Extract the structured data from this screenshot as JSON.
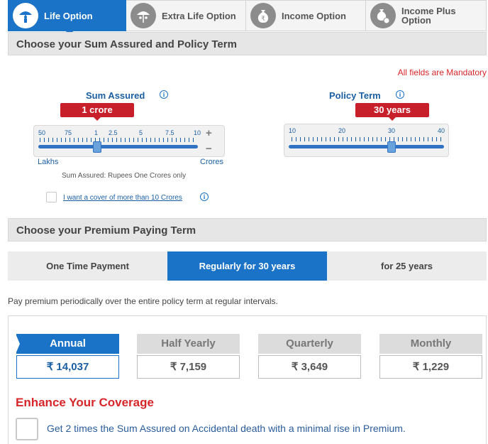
{
  "tabs": [
    {
      "label": "Life Option",
      "icon": "umbrella-person-icon",
      "active": true
    },
    {
      "label": "Extra Life Option",
      "icon": "umbrella-family-icon",
      "active": false
    },
    {
      "label": "Income Option",
      "icon": "rupee-bag-icon",
      "active": false
    },
    {
      "label": "Income Plus Option",
      "icon": "rupee-bag-coins-icon",
      "active": false
    }
  ],
  "sum_policy": {
    "heading": "Choose your Sum Assured and Policy Term",
    "mandatory_note": "All fields are Mandatory",
    "sum_assured": {
      "label": "Sum Assured",
      "value_flag": "1 crore",
      "ticks": [
        "50",
        "75",
        "1",
        "2.5",
        "5",
        "7.5",
        "10"
      ],
      "plus": "+",
      "minus": "−",
      "left_caption": "Lakhs",
      "right_caption": "Crores",
      "summary": "Sum Assured: Rupees One Crores only",
      "cover_checkbox_label": "I want a cover of more than 10 Crores",
      "cover_checked": false
    },
    "policy_term": {
      "label": "Policy Term",
      "value_flag": "30 years",
      "ticks": [
        "10",
        "20",
        "30",
        "40"
      ],
      "value_years": 30
    }
  },
  "premium_term": {
    "heading": "Choose your Premium Paying Term",
    "options": [
      {
        "label": "One Time Payment",
        "active": false
      },
      {
        "label": "Regularly for 30 years",
        "active": true
      },
      {
        "label": "for 25 years",
        "active": false
      }
    ],
    "description": "Pay premium periodically over the entire policy term at regular intervals."
  },
  "frequencies": [
    {
      "label": "Annual",
      "amount": "₹ 14,037",
      "active": true
    },
    {
      "label": "Half Yearly",
      "amount": "₹ 7,159",
      "active": false
    },
    {
      "label": "Quarterly",
      "amount": "₹ 3,649",
      "active": false
    },
    {
      "label": "Monthly",
      "amount": "₹ 1,229",
      "active": false
    }
  ],
  "enhance": {
    "title": "Enhance Your Coverage",
    "accidental_label": "Get 2 times the Sum Assured on Accidental death with a minimal rise in Premium.",
    "accidental_checked": false
  },
  "colors": {
    "primary": "#1a73c7",
    "flag_red": "#c8202a",
    "alert_red": "#d7262a"
  }
}
